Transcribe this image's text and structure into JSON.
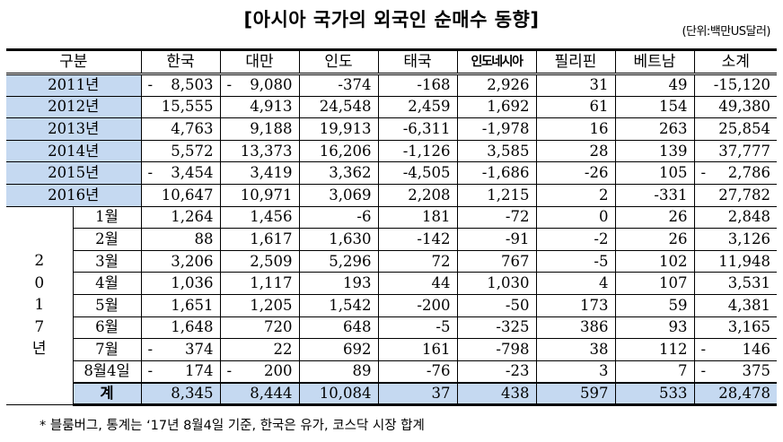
{
  "title": "[아시아 국가의 외국인 순매수 동향]",
  "unit": "(단위:백만US달러)",
  "table": {
    "headers": [
      "구분",
      "한국",
      "대만",
      "인도",
      "태국",
      "인도네시아",
      "필리핀",
      "베트남",
      "소계"
    ],
    "annual_rows": [
      {
        "label": "2011년",
        "values": [
          "- 8,503",
          "- 9,080",
          "-374",
          "-168",
          "2,926",
          "31",
          "49",
          "-15,120"
        ]
      },
      {
        "label": "2012년",
        "values": [
          "15,555",
          "4,913",
          "24,548",
          "2,459",
          "1,692",
          "61",
          "154",
          "49,380"
        ]
      },
      {
        "label": "2013년",
        "values": [
          "4,763",
          "9,188",
          "19,913",
          "-6,311",
          "-1,978",
          "16",
          "263",
          "25,854"
        ]
      },
      {
        "label": "2014년",
        "values": [
          "5,572",
          "13,373",
          "16,206",
          "-1,126",
          "3,585",
          "28",
          "139",
          "37,777"
        ]
      },
      {
        "label": "2015년",
        "values": [
          "- 3,454",
          "3,419",
          "3,362",
          "-4,505",
          "-1,686",
          "-26",
          "105",
          "- 2,786"
        ]
      },
      {
        "label": "2016년",
        "values": [
          "10,647",
          "10,971",
          "3,069",
          "2,208",
          "1,215",
          "2",
          "-331",
          "27,782"
        ]
      }
    ],
    "year_2017_label": [
      "2",
      "0",
      "1",
      "7",
      "년"
    ],
    "monthly_rows": [
      {
        "label": "1월",
        "values": [
          "1,264",
          "1,456",
          "-6",
          "181",
          "-72",
          "0",
          "26",
          "2,848"
        ]
      },
      {
        "label": "2월",
        "values": [
          "88",
          "1,617",
          "1,630",
          "-142",
          "-91",
          "-2",
          "26",
          "3,126"
        ]
      },
      {
        "label": "3월",
        "values": [
          "3,206",
          "2,509",
          "5,296",
          "72",
          "767",
          "-5",
          "102",
          "11,948"
        ]
      },
      {
        "label": "4월",
        "values": [
          "1,036",
          "1,117",
          "193",
          "44",
          "1,030",
          "4",
          "107",
          "3,531"
        ]
      },
      {
        "label": "5월",
        "values": [
          "1,651",
          "1,205",
          "1,542",
          "-200",
          "-50",
          "173",
          "59",
          "4,381"
        ]
      },
      {
        "label": "6월",
        "values": [
          "1,648",
          "720",
          "648",
          "-5",
          "-325",
          "386",
          "93",
          "3,165"
        ]
      },
      {
        "label": "7월",
        "values": [
          "- 374",
          "22",
          "692",
          "161",
          "-798",
          "38",
          "112",
          "- 146"
        ]
      },
      {
        "label": "8월4일",
        "values": [
          "- 174",
          "- 200",
          "89",
          "-76",
          "-23",
          "3",
          "7",
          "- 375"
        ]
      }
    ],
    "total_row": {
      "label": "계",
      "values": [
        "8,345",
        "8,444",
        "10,084",
        "37",
        "438",
        "597",
        "533",
        "28,478"
      ]
    }
  },
  "footnote": "* 블룸버그, 통계는 ‘17년 8월4일 기준, 한국은 유가, 코스닥 시장 합계",
  "colors": {
    "highlight_fill": "#c5d9f1",
    "border": "#000000"
  }
}
